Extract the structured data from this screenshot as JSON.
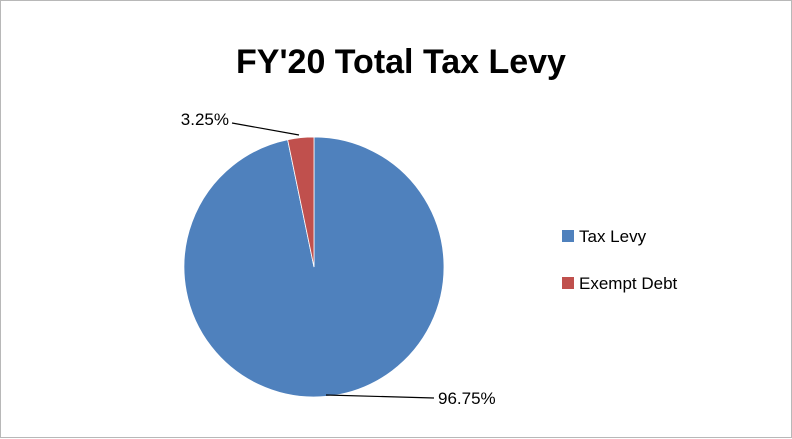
{
  "chart_data": {
    "type": "pie",
    "title": "FY'20 Total Tax Levy",
    "categories": [
      "Tax Levy",
      "Exempt Debt"
    ],
    "values": [
      96.75,
      3.25
    ],
    "labels": [
      "96.75%",
      "3.25%"
    ],
    "colors": [
      "#4f81bd",
      "#c0504d"
    ],
    "legend_position": "right"
  }
}
